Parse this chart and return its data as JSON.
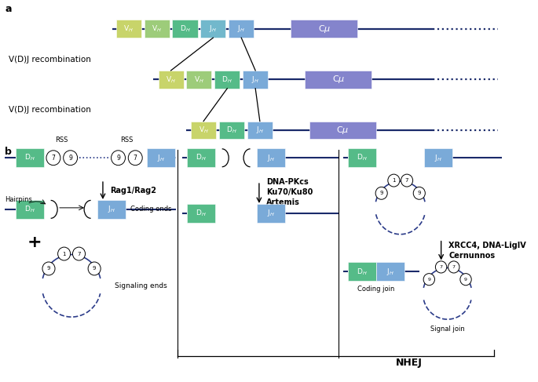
{
  "bg_color": "#ffffff",
  "panel_a_label": "a",
  "panel_b_label": "b",
  "vdj_text": "V(D)J recombination",
  "nhej_text": "NHEJ",
  "rag_text": "Rag1/Rag2",
  "dnapkcs_text": "DNA-PKcs\nKu70/Ku80\nArtemis",
  "xrcc4_text": "XRCC4, DNA-LigIV\nCernunnos",
  "hairpins_text": "Hairpins",
  "coding_ends_text": "Coding ends",
  "signaling_ends_text": "Signaling ends",
  "coding_join_text": "Coding join",
  "signal_join_text": "Signal join",
  "rss_text": "RSS",
  "colors": {
    "VH_yellow": "#c8d46a",
    "VH_green": "#9dcc7a",
    "DH_green": "#55bb88",
    "JH_teal": "#72b8cc",
    "JH_blue": "#7aaad8",
    "Cmu_purple": "#8484cc",
    "line_dark": "#1a2a6a",
    "dashed_blue": "#2a3a88"
  }
}
